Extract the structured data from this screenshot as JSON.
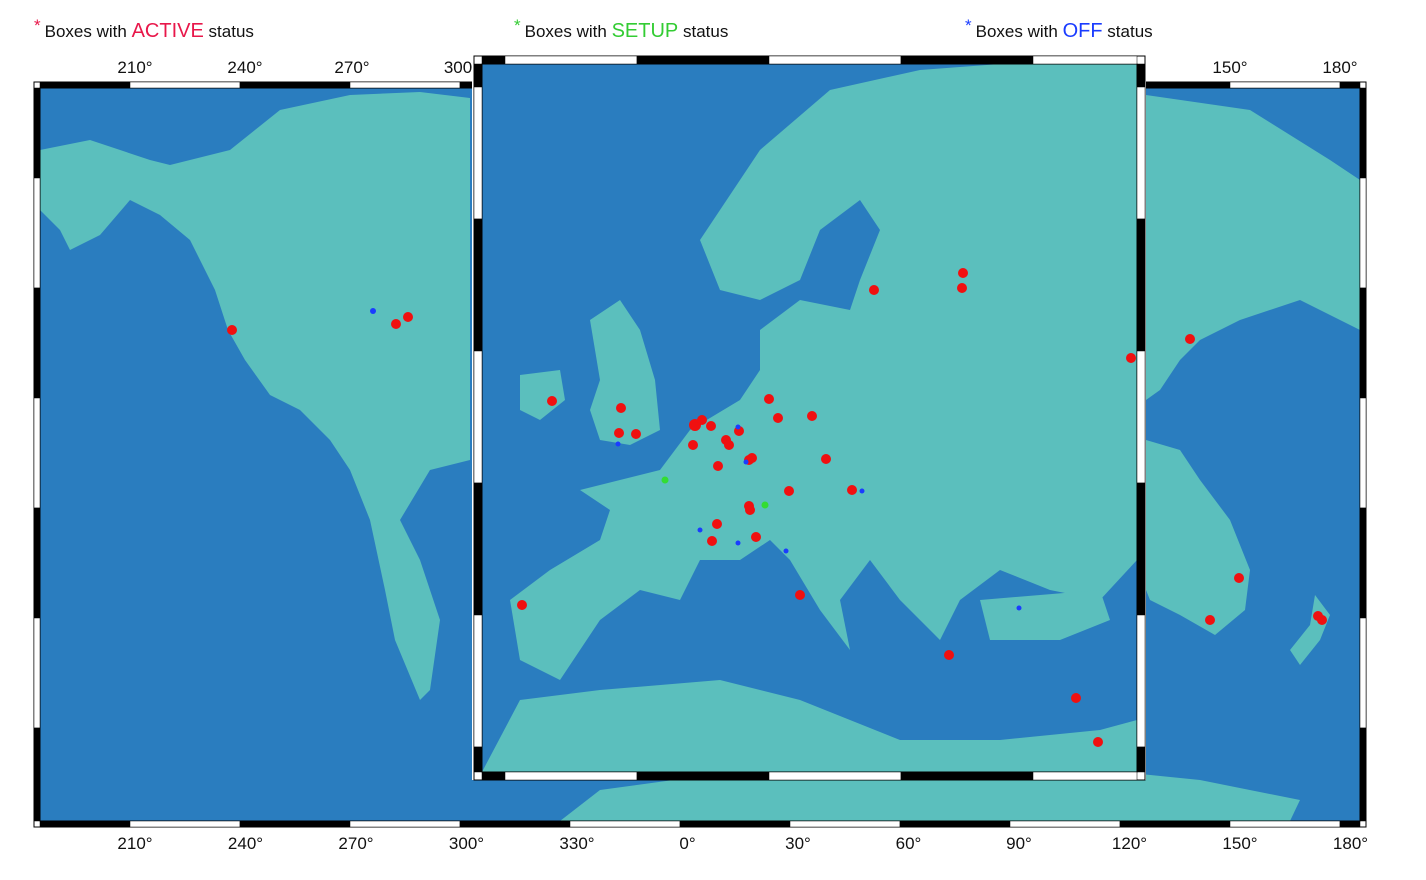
{
  "legend": [
    {
      "marker": "*",
      "prefix": "Boxes with",
      "status": "ACTIVE",
      "suffix": "status",
      "color": "#e8174a"
    },
    {
      "marker": "*",
      "prefix": "Boxes with",
      "status": "SETUP",
      "suffix": "status",
      "color": "#33cc33"
    },
    {
      "marker": "*",
      "prefix": "Boxes with",
      "status": "OFF",
      "suffix": "status",
      "color": "#1a3cff"
    }
  ],
  "world_map": {
    "top_ticks": [
      "210°",
      "240°",
      "270°",
      "300",
      "150°",
      "180°"
    ],
    "bottom_ticks": [
      "210°",
      "240°",
      "270°",
      "300°",
      "330°",
      "0°",
      "30°",
      "60°",
      "90°",
      "120°",
      "150°",
      "180°"
    ]
  }
}
